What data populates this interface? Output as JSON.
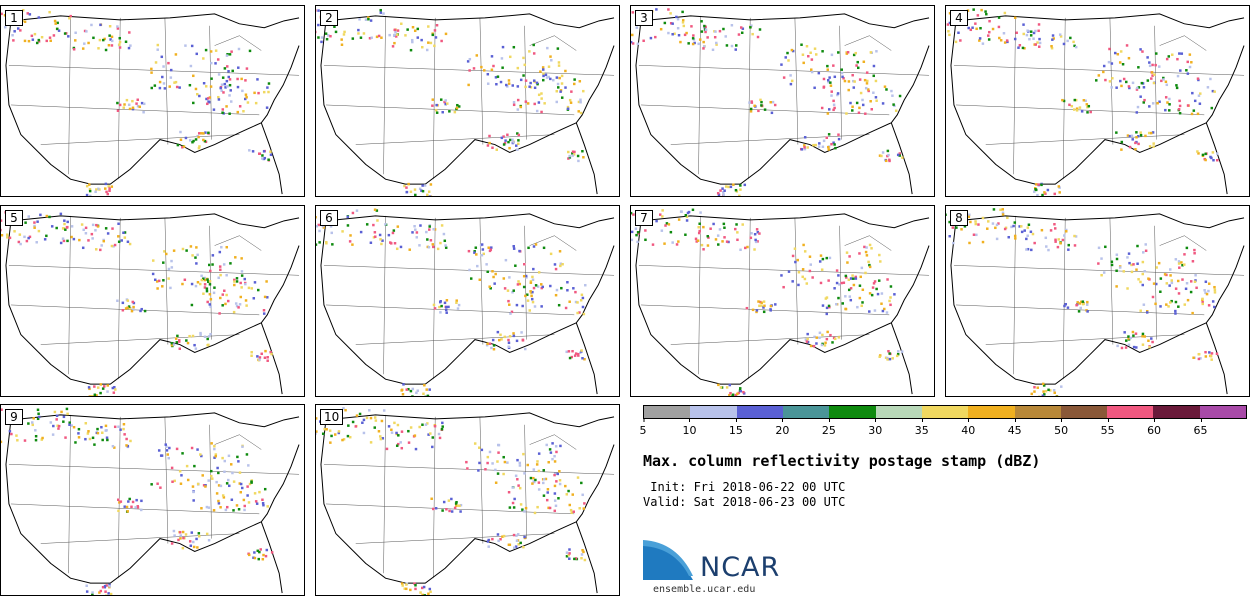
{
  "panels": [
    {
      "label": "1"
    },
    {
      "label": "2"
    },
    {
      "label": "3"
    },
    {
      "label": "4"
    },
    {
      "label": "5"
    },
    {
      "label": "6"
    },
    {
      "label": "7"
    },
    {
      "label": "8"
    },
    {
      "label": "9"
    },
    {
      "label": "10"
    }
  ],
  "colorbar": {
    "ticks": [
      "5",
      "10",
      "15",
      "20",
      "25",
      "30",
      "35",
      "40",
      "45",
      "50",
      "55",
      "60",
      "65"
    ],
    "colors": [
      "#a0a0a0",
      "#b8c2ea",
      "#5a60d4",
      "#4a9598",
      "#0e8a0e",
      "#b8d8b8",
      "#f0d860",
      "#f0b020",
      "#b88838",
      "#8a5838",
      "#f05880",
      "#6a1a3a",
      "#a84aa8"
    ]
  },
  "title": "Max. column reflectivity postage stamp (dBZ)",
  "init": " Init: Fri 2018-06-22 00 UTC",
  "valid": "Valid: Sat 2018-06-23 00 UTC",
  "logo": {
    "text": "NCAR",
    "url": "ensemble.ucar.edu"
  }
}
